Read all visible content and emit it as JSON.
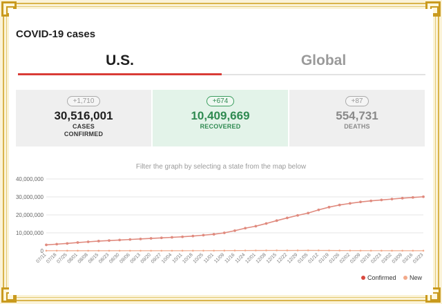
{
  "header": {
    "title": "COVID-19 cases"
  },
  "tabs": [
    {
      "label": "U.S.",
      "active": true
    },
    {
      "label": "Global",
      "active": false
    }
  ],
  "stats": {
    "cases": {
      "delta": "+1,710",
      "value": "30,516,001",
      "label1": "CASES",
      "label2": "CONFIRMED"
    },
    "recovered": {
      "delta": "+674",
      "value": "10,409,669",
      "label1": "RECOVERED"
    },
    "deaths": {
      "delta": "+87",
      "value": "554,731",
      "label1": "DEATHS"
    }
  },
  "hint": "Filter the graph by selecting a state from the map below",
  "colors": {
    "accent": "#d93b36",
    "confirmed": "#e08a7e",
    "new": "#f2a98a",
    "recovered": "#2f8a51"
  },
  "chart_data": {
    "type": "line",
    "y_ticks": [
      "40,000,000",
      "30,000,000",
      "20,000,000",
      "10,000,000",
      "0"
    ],
    "ylim": [
      0,
      40000000
    ],
    "grid": true,
    "legend_position": "bottom-right",
    "x": [
      "07/11",
      "07/18",
      "07/25",
      "08/01",
      "08/08",
      "08/15",
      "08/23",
      "08/30",
      "09/06",
      "09/13",
      "09/20",
      "09/27",
      "10/04",
      "10/11",
      "10/18",
      "10/25",
      "11/01",
      "11/09",
      "11/16",
      "11/24",
      "12/01",
      "12/08",
      "12/15",
      "12/22",
      "12/29",
      "01/05",
      "01/12",
      "01/19",
      "01/26",
      "02/02",
      "02/09",
      "02/16",
      "02/23",
      "03/02",
      "03/09",
      "03/16",
      "03/23"
    ],
    "series": [
      {
        "name": "Confirmed",
        "color": "#e08a7e",
        "values": [
          3300000,
          3700000,
          4100000,
          4600000,
          5000000,
          5400000,
          5700000,
          6000000,
          6300000,
          6600000,
          6900000,
          7200000,
          7500000,
          7800000,
          8200000,
          8700000,
          9200000,
          10000000,
          11200000,
          12600000,
          13700000,
          15200000,
          16800000,
          18300000,
          19700000,
          21000000,
          22800000,
          24300000,
          25500000,
          26400000,
          27200000,
          27800000,
          28300000,
          28800000,
          29300000,
          29700000,
          30100000
        ]
      },
      {
        "name": "New",
        "color": "#f2a98a",
        "values": [
          60000,
          65000,
          60000,
          55000,
          50000,
          45000,
          42000,
          40000,
          38000,
          40000,
          42000,
          45000,
          50000,
          58000,
          65000,
          75000,
          90000,
          120000,
          150000,
          170000,
          190000,
          210000,
          220000,
          200000,
          210000,
          230000,
          220000,
          180000,
          150000,
          120000,
          95000,
          75000,
          70000,
          62000,
          55000,
          55000,
          58000
        ]
      }
    ]
  }
}
